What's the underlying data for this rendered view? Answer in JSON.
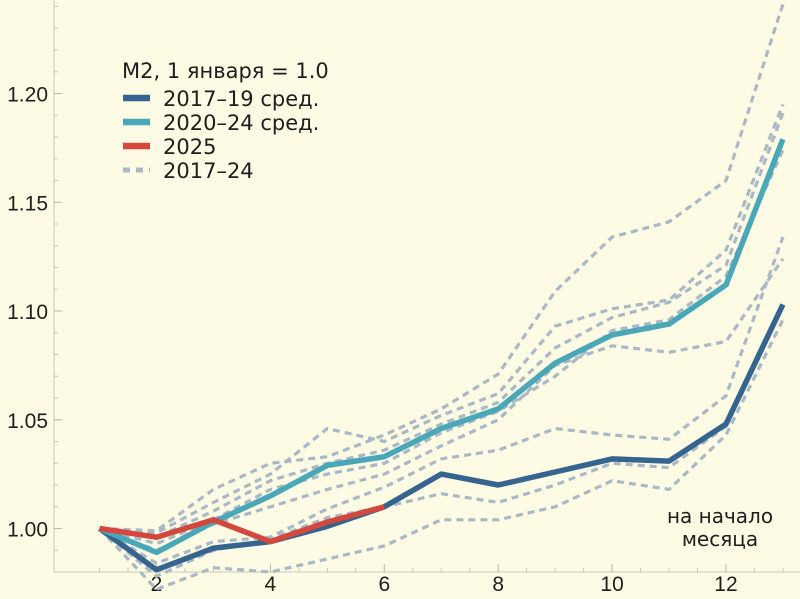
{
  "chart_data": {
    "type": "line",
    "title": "",
    "xlabel": "",
    "ylabel": "",
    "xlim": [
      0.2,
      13.3
    ],
    "ylim": [
      0.98,
      1.243
    ],
    "x_ticks": [
      2,
      4,
      6,
      8,
      10,
      12
    ],
    "y_ticks": [
      1.0,
      1.05,
      1.1,
      1.15,
      1.2
    ],
    "x_tick_labels": [
      "2",
      "4",
      "6",
      "8",
      "10",
      "12"
    ],
    "y_tick_labels": [
      "1.00",
      "1.05",
      "1.10",
      "1.15",
      "1.20"
    ],
    "grid": false,
    "legend": {
      "title": "M2, 1 января = 1.0",
      "position": "top-left"
    },
    "annotation": [
      "на начало",
      "месяца"
    ],
    "series": [
      {
        "name": "2017–24",
        "style": "dashed",
        "color": "#a9b8c6",
        "lines": [
          {
            "x": [
              1,
              2,
              3,
              4,
              5,
              6,
              7,
              8,
              9,
              10,
              11,
              12,
              13
            ],
            "y": [
              1.0,
              0.972,
              0.982,
              0.98,
              0.986,
              0.992,
              1.004,
              1.004,
              1.01,
              1.022,
              1.018,
              1.043,
              1.096
            ]
          },
          {
            "x": [
              1,
              2,
              3,
              4,
              5,
              6,
              7,
              8,
              9,
              10,
              11,
              12,
              13
            ],
            "y": [
              1.0,
              0.978,
              0.99,
              0.995,
              1.005,
              1.01,
              1.016,
              1.012,
              1.02,
              1.03,
              1.028,
              1.047,
              1.104
            ]
          },
          {
            "x": [
              1,
              2,
              3,
              4,
              5,
              6,
              7,
              8,
              9,
              10,
              11,
              12,
              13
            ],
            "y": [
              1.0,
              0.984,
              0.994,
              0.996,
              1.009,
              1.019,
              1.032,
              1.036,
              1.046,
              1.043,
              1.041,
              1.061,
              1.134
            ]
          },
          {
            "x": [
              1,
              2,
              3,
              4,
              5,
              6,
              7,
              8,
              9,
              10,
              11,
              12,
              13
            ],
            "y": [
              1.0,
              0.99,
              1.002,
              1.01,
              1.018,
              1.025,
              1.038,
              1.05,
              1.075,
              1.084,
              1.081,
              1.086,
              1.124
            ]
          },
          {
            "x": [
              1,
              2,
              3,
              4,
              5,
              6,
              7,
              8,
              9,
              10,
              11,
              12,
              13
            ],
            "y": [
              1.0,
              0.993,
              1.004,
              1.018,
              1.025,
              1.03,
              1.044,
              1.054,
              1.07,
              1.091,
              1.096,
              1.116,
              1.174
            ]
          },
          {
            "x": [
              1,
              2,
              3,
              4,
              5,
              6,
              7,
              8,
              9,
              10,
              11,
              12,
              13
            ],
            "y": [
              1.0,
              0.996,
              1.008,
              1.022,
              1.03,
              1.036,
              1.048,
              1.058,
              1.083,
              1.097,
              1.104,
              1.121,
              1.191
            ]
          },
          {
            "x": [
              1,
              2,
              3,
              4,
              5,
              6,
              7,
              8,
              9,
              10,
              11,
              12,
              13
            ],
            "y": [
              1.0,
              0.998,
              1.012,
              1.025,
              1.046,
              1.04,
              1.052,
              1.062,
              1.093,
              1.101,
              1.105,
              1.128,
              1.195
            ]
          },
          {
            "x": [
              1,
              2,
              3,
              4,
              5,
              6,
              7,
              8,
              9,
              10,
              11,
              12,
              13
            ],
            "y": [
              1.0,
              0.999,
              1.018,
              1.03,
              1.033,
              1.043,
              1.055,
              1.071,
              1.109,
              1.134,
              1.141,
              1.16,
              1.241
            ]
          }
        ]
      },
      {
        "name": "2017–19 сред.",
        "color": "#35648e",
        "x": [
          1,
          2,
          3,
          4,
          5,
          6,
          7,
          8,
          9,
          10,
          11,
          12,
          13
        ],
        "y": [
          1.0,
          0.981,
          0.991,
          0.994,
          1.001,
          1.01,
          1.025,
          1.02,
          1.026,
          1.032,
          1.031,
          1.048,
          1.103
        ]
      },
      {
        "name": "2020–24 сред.",
        "color": "#4aa7b8",
        "x": [
          1,
          2,
          3,
          4,
          5,
          6,
          7,
          8,
          9,
          10,
          11,
          12,
          13
        ],
        "y": [
          1.0,
          0.989,
          1.003,
          1.015,
          1.029,
          1.033,
          1.046,
          1.055,
          1.076,
          1.089,
          1.094,
          1.112,
          1.179
        ]
      },
      {
        "name": "2025",
        "color": "#d4473d",
        "x": [
          1,
          2,
          3,
          4,
          5,
          6
        ],
        "y": [
          1.0,
          0.996,
          1.004,
          0.994,
          1.003,
          1.01
        ]
      }
    ]
  }
}
